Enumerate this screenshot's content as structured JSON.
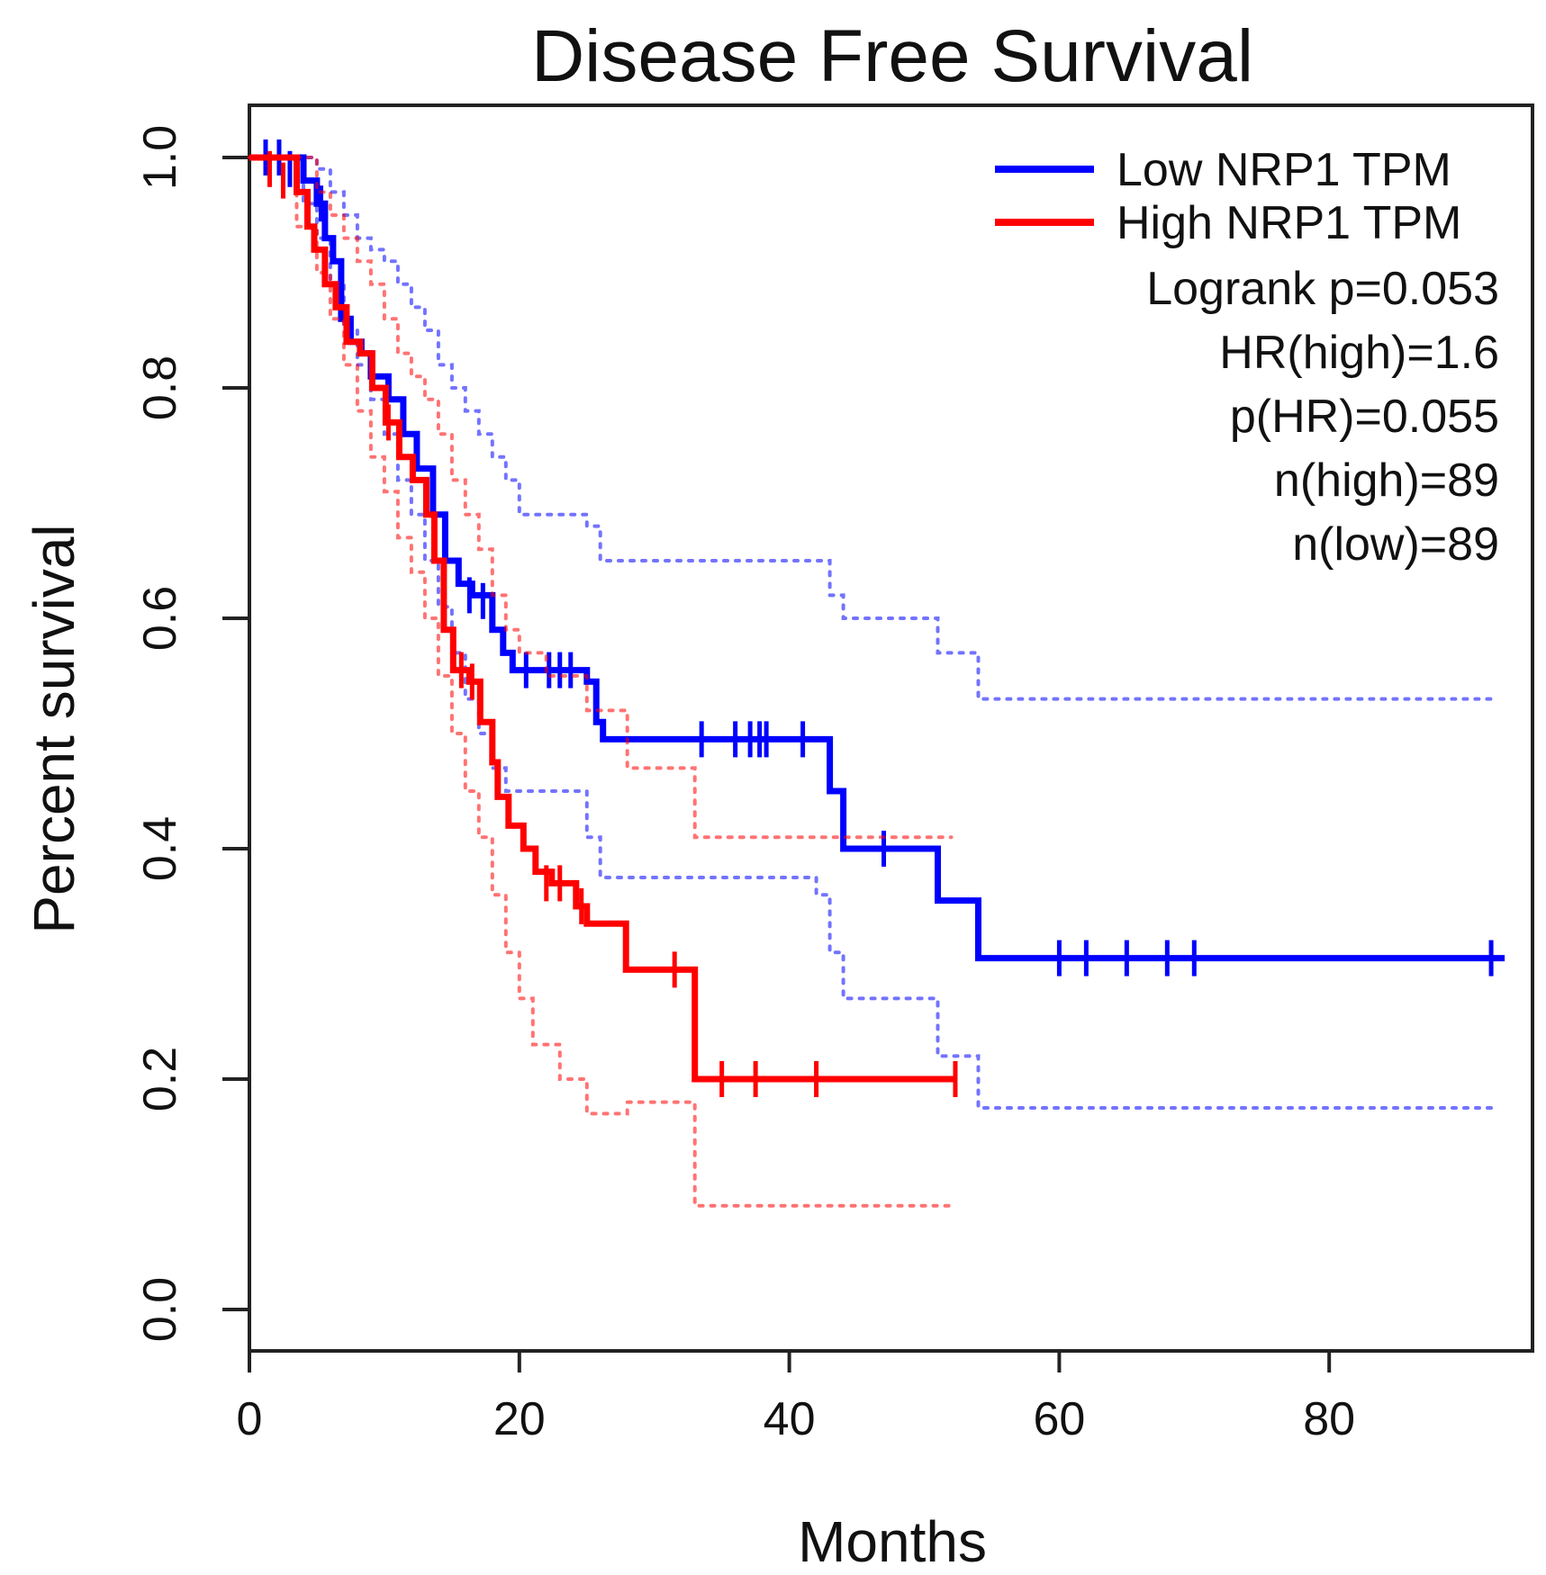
{
  "chart_data": {
    "type": "line",
    "subtype": "kaplan-meier",
    "title": "Disease Free Survival",
    "xlabel": "Months",
    "ylabel": "Percent survival",
    "xlim": [
      0,
      95
    ],
    "ylim": [
      0,
      1.04
    ],
    "x_ticks": [
      0,
      20,
      40,
      60,
      80
    ],
    "y_ticks": [
      0.0,
      0.2,
      0.4,
      0.6,
      0.8,
      1.0
    ],
    "x_tick_labels": [
      "0",
      "20",
      "40",
      "60",
      "80"
    ],
    "y_tick_labels": [
      "0.0",
      "0.2",
      "0.4",
      "0.6",
      "0.8",
      "1.0"
    ],
    "legend_position": "top-right",
    "grid": false,
    "series": [
      {
        "name": "Low NRP1 TPM",
        "color": "#0000ff",
        "steps": [
          [
            0,
            1.0
          ],
          [
            4,
            0.98
          ],
          [
            5,
            0.96
          ],
          [
            5.6,
            0.93
          ],
          [
            6.2,
            0.91
          ],
          [
            6.8,
            0.86
          ],
          [
            7.5,
            0.84
          ],
          [
            8.3,
            0.83
          ],
          [
            9.0,
            0.81
          ],
          [
            10.3,
            0.79
          ],
          [
            11.4,
            0.76
          ],
          [
            12.4,
            0.73
          ],
          [
            13.6,
            0.69
          ],
          [
            14.5,
            0.65
          ],
          [
            15.5,
            0.63
          ],
          [
            16.5,
            0.62
          ],
          [
            18,
            0.59
          ],
          [
            18.8,
            0.57
          ],
          [
            19.5,
            0.555
          ],
          [
            25,
            0.545
          ],
          [
            25.7,
            0.51
          ],
          [
            26.2,
            0.495
          ],
          [
            43,
            0.45
          ],
          [
            44,
            0.4
          ],
          [
            51,
            0.355
          ],
          [
            54,
            0.305
          ],
          [
            93,
            0.305
          ]
        ],
        "censors": [
          [
            1.2,
            1.0
          ],
          [
            2.2,
            1.0
          ],
          [
            3.0,
            0.99
          ],
          [
            5.3,
            0.96
          ],
          [
            16.3,
            0.62
          ],
          [
            17.3,
            0.615
          ],
          [
            20.5,
            0.555
          ],
          [
            22.2,
            0.555
          ],
          [
            23.0,
            0.555
          ],
          [
            23.8,
            0.555
          ],
          [
            33.5,
            0.495
          ],
          [
            36.0,
            0.495
          ],
          [
            37.1,
            0.495
          ],
          [
            37.8,
            0.495
          ],
          [
            38.3,
            0.495
          ],
          [
            41.0,
            0.495
          ],
          [
            47.0,
            0.4
          ],
          [
            60.0,
            0.305
          ],
          [
            62.0,
            0.305
          ],
          [
            65.0,
            0.305
          ],
          [
            68.0,
            0.305
          ],
          [
            70.0,
            0.305
          ],
          [
            92.0,
            0.305
          ]
        ],
        "ci_upper": [
          [
            0,
            1.0
          ],
          [
            4,
            1.0
          ],
          [
            5,
            0.99
          ],
          [
            6,
            0.97
          ],
          [
            7,
            0.95
          ],
          [
            8,
            0.93
          ],
          [
            9,
            0.92
          ],
          [
            10,
            0.91
          ],
          [
            11,
            0.89
          ],
          [
            12,
            0.87
          ],
          [
            13,
            0.85
          ],
          [
            14,
            0.82
          ],
          [
            15,
            0.8
          ],
          [
            16,
            0.78
          ],
          [
            17,
            0.76
          ],
          [
            18,
            0.74
          ],
          [
            19,
            0.72
          ],
          [
            20,
            0.69
          ],
          [
            25,
            0.68
          ],
          [
            26,
            0.65
          ],
          [
            43,
            0.62
          ],
          [
            44,
            0.6
          ],
          [
            51,
            0.57
          ],
          [
            54,
            0.53
          ],
          [
            92,
            0.53
          ]
        ],
        "ci_lower": [
          [
            0,
            1.0
          ],
          [
            4,
            0.96
          ],
          [
            5,
            0.93
          ],
          [
            6,
            0.89
          ],
          [
            7,
            0.85
          ],
          [
            8,
            0.82
          ],
          [
            9,
            0.79
          ],
          [
            10,
            0.76
          ],
          [
            11,
            0.72
          ],
          [
            12,
            0.69
          ],
          [
            13,
            0.65
          ],
          [
            14,
            0.61
          ],
          [
            15,
            0.57
          ],
          [
            16,
            0.53
          ],
          [
            17,
            0.5
          ],
          [
            18,
            0.47
          ],
          [
            19,
            0.45
          ],
          [
            25,
            0.41
          ],
          [
            26,
            0.375
          ],
          [
            42,
            0.36
          ],
          [
            43,
            0.31
          ],
          [
            44,
            0.27
          ],
          [
            51,
            0.22
          ],
          [
            54,
            0.175
          ],
          [
            92,
            0.175
          ]
        ]
      },
      {
        "name": "High NRP1 TPM",
        "color": "#ff0000",
        "steps": [
          [
            0,
            1.0
          ],
          [
            3.5,
            0.97
          ],
          [
            4.3,
            0.94
          ],
          [
            4.8,
            0.92
          ],
          [
            5.6,
            0.89
          ],
          [
            6.4,
            0.87
          ],
          [
            7.2,
            0.84
          ],
          [
            8.2,
            0.83
          ],
          [
            9.1,
            0.8
          ],
          [
            10.1,
            0.77
          ],
          [
            11.1,
            0.74
          ],
          [
            12.1,
            0.72
          ],
          [
            13.1,
            0.69
          ],
          [
            13.7,
            0.65
          ],
          [
            14.4,
            0.59
          ],
          [
            15.1,
            0.555
          ],
          [
            16.3,
            0.545
          ],
          [
            17.1,
            0.51
          ],
          [
            18.0,
            0.475
          ],
          [
            18.4,
            0.445
          ],
          [
            19.2,
            0.42
          ],
          [
            20.3,
            0.4
          ],
          [
            21.2,
            0.38
          ],
          [
            22.4,
            0.37
          ],
          [
            24.2,
            0.35
          ],
          [
            25.0,
            0.335
          ],
          [
            27.9,
            0.295
          ],
          [
            33.0,
            0.2
          ],
          [
            52.4,
            0.2
          ]
        ],
        "censors": [
          [
            1.5,
            0.99
          ],
          [
            2.5,
            0.98
          ],
          [
            10.3,
            0.77
          ],
          [
            15.7,
            0.555
          ],
          [
            16.5,
            0.545
          ],
          [
            22.0,
            0.37
          ],
          [
            23.0,
            0.37
          ],
          [
            24.6,
            0.35
          ],
          [
            31.5,
            0.295
          ],
          [
            35.0,
            0.2
          ],
          [
            37.5,
            0.2
          ],
          [
            42.0,
            0.2
          ],
          [
            52.3,
            0.2
          ]
        ],
        "ci_upper": [
          [
            0,
            1.0
          ],
          [
            3.5,
            1.0
          ],
          [
            5,
            0.97
          ],
          [
            6,
            0.95
          ],
          [
            7,
            0.93
          ],
          [
            8,
            0.91
          ],
          [
            9,
            0.89
          ],
          [
            10,
            0.86
          ],
          [
            11,
            0.83
          ],
          [
            12,
            0.81
          ],
          [
            13,
            0.79
          ],
          [
            14,
            0.76
          ],
          [
            15,
            0.72
          ],
          [
            16,
            0.69
          ],
          [
            17,
            0.66
          ],
          [
            18,
            0.62
          ],
          [
            19,
            0.59
          ],
          [
            20,
            0.57
          ],
          [
            22,
            0.55
          ],
          [
            25,
            0.52
          ],
          [
            28,
            0.47
          ],
          [
            33,
            0.41
          ],
          [
            52,
            0.41
          ]
        ],
        "ci_lower": [
          [
            0,
            1.0
          ],
          [
            3.5,
            0.94
          ],
          [
            5,
            0.9
          ],
          [
            6,
            0.86
          ],
          [
            7,
            0.82
          ],
          [
            8,
            0.78
          ],
          [
            9,
            0.74
          ],
          [
            10,
            0.71
          ],
          [
            11,
            0.67
          ],
          [
            12,
            0.64
          ],
          [
            13,
            0.6
          ],
          [
            14,
            0.55
          ],
          [
            15,
            0.5
          ],
          [
            16,
            0.45
          ],
          [
            17,
            0.41
          ],
          [
            18,
            0.36
          ],
          [
            19,
            0.31
          ],
          [
            20,
            0.27
          ],
          [
            21,
            0.23
          ],
          [
            23,
            0.2
          ],
          [
            25,
            0.17
          ],
          [
            28,
            0.18
          ],
          [
            33,
            0.09
          ],
          [
            52,
            0.09
          ]
        ]
      }
    ],
    "annotations": [
      "Logrank p=0.053",
      "HR(high)=1.6",
      "p(HR)=0.055",
      "n(high)=89",
      "n(low)=89"
    ]
  }
}
